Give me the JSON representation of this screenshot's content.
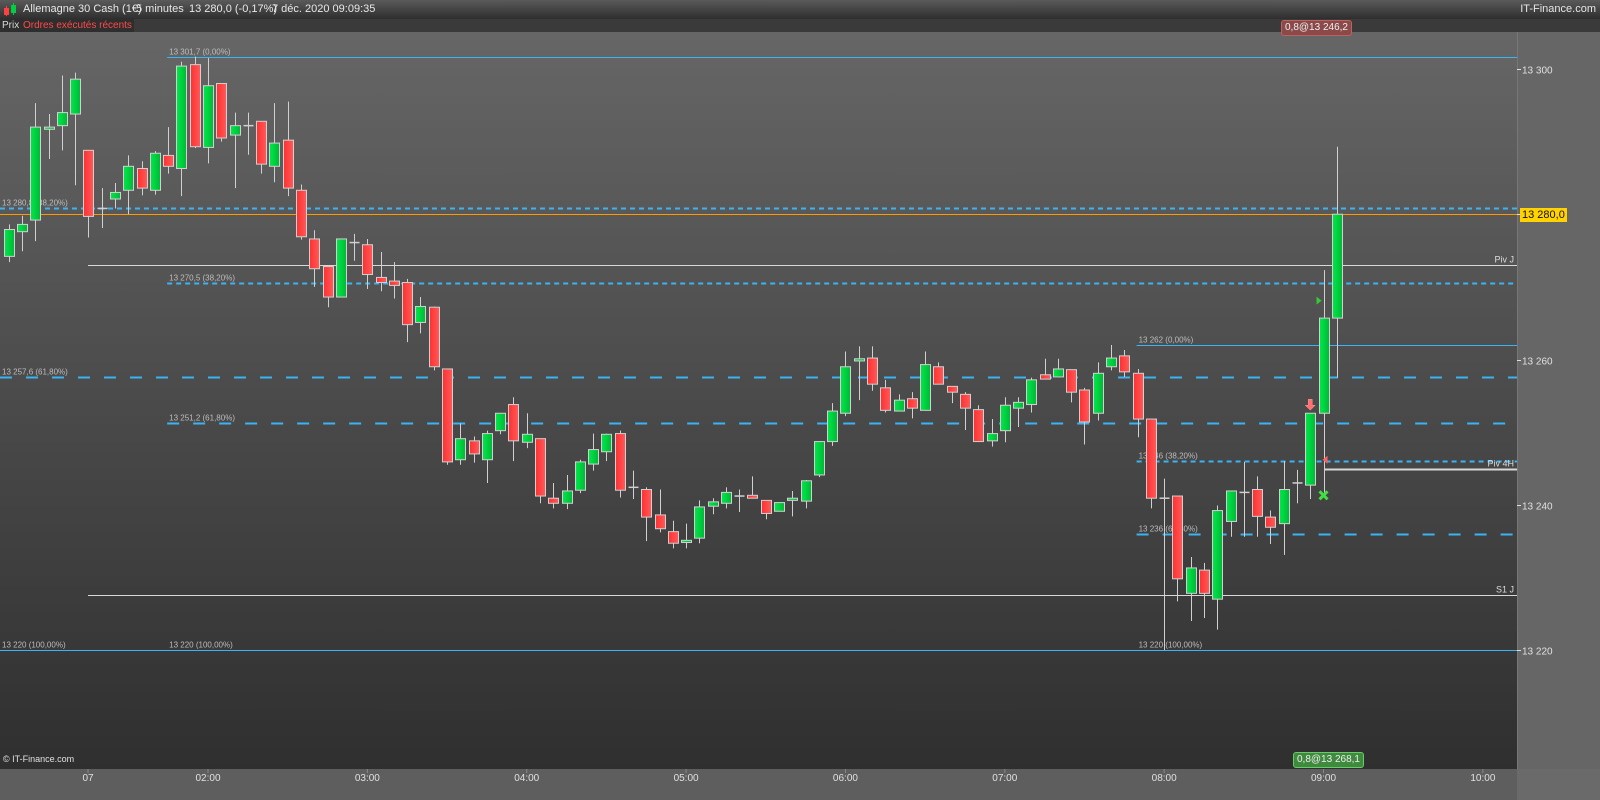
{
  "header": {
    "instrument": "Allemagne 30 Cash (1€)",
    "interval": "5 minutes",
    "last_price": "13 280,0 (-0,17%)",
    "datetime": "7 déc. 2020 09:09:35",
    "brand": "IT-Finance.com"
  },
  "tabs": [
    {
      "label": "Prix",
      "active": true
    },
    {
      "label": "Ordres exécutés récents",
      "active": false
    }
  ],
  "footer": {
    "copyright": "© IT-Finance.com"
  },
  "orders": {
    "sell_tag": "0,8@13 246,2",
    "buy_tag": "0,8@13 268,1"
  },
  "colors": {
    "up": "#00d040",
    "down": "#ff4040",
    "fib": "#3ab4f2",
    "last_price_line": "#ff9900",
    "last_price_tag": "#ffd200",
    "pivot": "#d8d8d8"
  },
  "chart_data": {
    "type": "candlestick",
    "ylim": [
      13203,
      13310
    ],
    "y_ticks": [
      {
        "value": 13300,
        "label": "13 300"
      },
      {
        "value": 13260,
        "label": "13 260"
      },
      {
        "value": 13240,
        "label": "13 240"
      },
      {
        "value": 13220,
        "label": "13 220"
      }
    ],
    "last_price": {
      "value": 13280.0,
      "label": "13 280,0"
    },
    "x_ticks": [
      "07",
      "02:00",
      "03:00",
      "04:00",
      "05:00",
      "06:00",
      "07:00",
      "08:00",
      "09:00",
      "10:00"
    ],
    "candles": [
      [
        "00:45",
        13274.2,
        13278.6,
        13273.4,
        13277.9
      ],
      [
        "00:50",
        13277.6,
        13279.8,
        13274.9,
        13278.6
      ],
      [
        "00:55",
        13279.2,
        13295.3,
        13276.3,
        13292.0
      ],
      [
        "01:00",
        13291.7,
        13293.8,
        13287.6,
        13292.0
      ],
      [
        "01:05",
        13292.2,
        13299.1,
        13288.8,
        13294.0
      ],
      [
        "01:10",
        13293.8,
        13299.5,
        13284.0,
        13298.6
      ],
      [
        "01:15",
        13288.8,
        13288.8,
        13276.8,
        13279.7
      ],
      [
        "01:20",
        13280.8,
        13283.6,
        13278.1,
        13280.8
      ],
      [
        "01:25",
        13282.1,
        13284.3,
        13280.8,
        13283.0
      ],
      [
        "01:30",
        13283.3,
        13288.1,
        13280.0,
        13286.6
      ],
      [
        "01:35",
        13286.3,
        13287.3,
        13282.6,
        13283.6
      ],
      [
        "01:40",
        13283.3,
        13288.7,
        13282.7,
        13288.4
      ],
      [
        "01:45",
        13288.1,
        13292.0,
        13285.6,
        13286.6
      ],
      [
        "01:50",
        13286.3,
        13301.0,
        13282.5,
        13300.4
      ],
      [
        "01:55",
        13300.6,
        13301.7,
        13289.1,
        13289.3
      ],
      [
        "02:00",
        13289.2,
        13301.5,
        13287.0,
        13297.7
      ],
      [
        "02:05",
        13298.0,
        13298.0,
        13290.0,
        13290.5
      ],
      [
        "02:10",
        13290.9,
        13294.0,
        13283.6,
        13292.2
      ],
      [
        "02:15",
        13292.2,
        13294.0,
        13288.2,
        13292.2
      ],
      [
        "02:20",
        13292.8,
        13292.8,
        13285.6,
        13286.9
      ],
      [
        "02:25",
        13286.6,
        13295.3,
        13284.4,
        13289.8
      ],
      [
        "02:30",
        13290.2,
        13295.5,
        13282.5,
        13283.6
      ],
      [
        "02:35",
        13283.3,
        13284.1,
        13276.5,
        13276.9
      ],
      [
        "02:40",
        13276.6,
        13277.8,
        13270.0,
        13272.5
      ],
      [
        "02:45",
        13272.8,
        13272.8,
        13267.2,
        13268.6
      ],
      [
        "02:50",
        13268.6,
        13276.6,
        13268.6,
        13276.6
      ],
      [
        "02:55",
        13276.1,
        13277.3,
        13273.6,
        13276.1
      ],
      [
        "03:00",
        13275.8,
        13276.6,
        13269.7,
        13271.7
      ],
      [
        "03:05",
        13271.3,
        13274.8,
        13269.4,
        13270.6
      ],
      [
        "03:10",
        13270.8,
        13273.4,
        13268.4,
        13270.2
      ],
      [
        "03:15",
        13270.6,
        13271.1,
        13262.4,
        13264.8
      ],
      [
        "03:20",
        13265.1,
        13268.6,
        13263.6,
        13267.3
      ],
      [
        "03:25",
        13267.2,
        13267.3,
        13258.5,
        13259.0
      ],
      [
        "03:30",
        13258.7,
        13258.7,
        13245.5,
        13245.9
      ],
      [
        "03:35",
        13246.2,
        13251.2,
        13245.5,
        13249.1
      ],
      [
        "03:40",
        13248.8,
        13249.4,
        13245.8,
        13247.0
      ],
      [
        "03:45",
        13246.2,
        13250.2,
        13243.0,
        13249.8
      ],
      [
        "03:50",
        13250.2,
        13252.6,
        13249.7,
        13252.6
      ],
      [
        "03:55",
        13253.8,
        13254.8,
        13246.0,
        13248.8
      ],
      [
        "04:00",
        13248.6,
        13252.6,
        13247.8,
        13249.7
      ],
      [
        "04:05",
        13249.1,
        13249.1,
        13240.2,
        13241.2
      ],
      [
        "04:10",
        13240.9,
        13243.0,
        13239.5,
        13240.2
      ],
      [
        "04:15",
        13240.2,
        13244.1,
        13239.4,
        13241.9
      ],
      [
        "04:20",
        13242.0,
        13246.2,
        13241.6,
        13245.9
      ],
      [
        "04:25",
        13245.6,
        13249.8,
        13244.7,
        13247.6
      ],
      [
        "04:30",
        13247.3,
        13249.8,
        13246.0,
        13249.7
      ],
      [
        "04:35",
        13249.8,
        13250.2,
        13241.0,
        13242.0
      ],
      [
        "04:40",
        13242.4,
        13244.7,
        13240.8,
        13242.4
      ],
      [
        "04:45",
        13242.1,
        13242.4,
        13235.0,
        13238.3
      ],
      [
        "04:50",
        13238.6,
        13242.1,
        13236.2,
        13236.7
      ],
      [
        "04:55",
        13236.3,
        13237.8,
        13234.0,
        13234.7
      ],
      [
        "05:00",
        13234.8,
        13237.4,
        13234.0,
        13235.1
      ],
      [
        "05:05",
        13235.4,
        13240.6,
        13234.7,
        13239.7
      ],
      [
        "05:10",
        13239.8,
        13240.9,
        13238.7,
        13240.4
      ],
      [
        "05:15",
        13240.2,
        13242.4,
        13239.5,
        13241.7
      ],
      [
        "05:20",
        13241.2,
        13242.1,
        13239.0,
        13241.2
      ],
      [
        "05:25",
        13241.3,
        13243.9,
        13240.9,
        13240.9
      ],
      [
        "05:30",
        13240.6,
        13240.6,
        13238.0,
        13238.8
      ],
      [
        "05:35",
        13239.1,
        13240.3,
        13239.1,
        13240.3
      ],
      [
        "05:40",
        13240.6,
        13241.9,
        13238.4,
        13240.9
      ],
      [
        "05:45",
        13240.5,
        13243.4,
        13239.5,
        13243.3
      ],
      [
        "05:50",
        13244.1,
        13248.7,
        13243.8,
        13248.7
      ],
      [
        "05:55",
        13248.7,
        13254.0,
        13248.1,
        13252.9
      ],
      [
        "06:00",
        13252.6,
        13261.1,
        13252.2,
        13259.0
      ],
      [
        "06:05",
        13259.8,
        13261.8,
        13254.4,
        13260.1
      ],
      [
        "06:10",
        13260.2,
        13261.8,
        13255.7,
        13256.6
      ],
      [
        "06:15",
        13256.1,
        13257.2,
        13252.7,
        13253.0
      ],
      [
        "06:20",
        13252.9,
        13255.2,
        13252.9,
        13254.4
      ],
      [
        "06:25",
        13254.6,
        13255.5,
        13251.9,
        13253.3
      ],
      [
        "06:30",
        13253.0,
        13261.1,
        13253.0,
        13259.3
      ],
      [
        "06:35",
        13259.0,
        13259.6,
        13256.6,
        13256.6
      ],
      [
        "06:40",
        13256.3,
        13256.3,
        13254.0,
        13255.5
      ],
      [
        "06:45",
        13255.2,
        13255.5,
        13250.3,
        13253.3
      ],
      [
        "06:50",
        13253.1,
        13253.7,
        13248.7,
        13248.7
      ],
      [
        "06:55",
        13248.8,
        13251.8,
        13248.0,
        13249.8
      ],
      [
        "07:00",
        13250.2,
        13254.8,
        13248.6,
        13253.7
      ],
      [
        "07:05",
        13253.3,
        13254.8,
        13250.7,
        13254.1
      ],
      [
        "07:10",
        13253.8,
        13257.5,
        13252.7,
        13257.2
      ],
      [
        "07:15",
        13257.9,
        13260.1,
        13257.3,
        13257.3
      ],
      [
        "07:20",
        13257.6,
        13260.1,
        13257.6,
        13258.7
      ],
      [
        "07:25",
        13258.6,
        13258.6,
        13254.1,
        13255.5
      ],
      [
        "07:30",
        13255.8,
        13256.1,
        13248.3,
        13251.4
      ],
      [
        "07:35",
        13252.6,
        13259.6,
        13251.6,
        13258.1
      ],
      [
        "07:40",
        13259.0,
        13262.0,
        13258.5,
        13260.2
      ],
      [
        "07:45",
        13260.5,
        13261.3,
        13257.6,
        13258.3
      ],
      [
        "07:50",
        13258.1,
        13258.7,
        13249.3,
        13251.8
      ],
      [
        "07:55",
        13251.8,
        13251.8,
        13239.5,
        13240.9
      ],
      [
        "08:00",
        13240.9,
        13243.6,
        13220.0,
        13240.9
      ],
      [
        "08:05",
        13241.2,
        13241.2,
        13226.7,
        13229.8
      ],
      [
        "08:10",
        13227.8,
        13232.8,
        13224.0,
        13231.3
      ],
      [
        "08:15",
        13231.0,
        13232.0,
        13224.4,
        13227.8
      ],
      [
        "08:20",
        13227.0,
        13239.9,
        13222.8,
        13239.2
      ],
      [
        "08:25",
        13237.7,
        13241.9,
        13235.6,
        13241.9
      ],
      [
        "08:30",
        13241.7,
        13245.9,
        13235.6,
        13241.7
      ],
      [
        "08:35",
        13242.1,
        13243.9,
        13235.6,
        13238.4
      ],
      [
        "08:40",
        13238.3,
        13239.2,
        13234.6,
        13236.9
      ],
      [
        "08:45",
        13237.4,
        13246.0,
        13233.1,
        13242.1
      ],
      [
        "08:50",
        13243.0,
        13244.8,
        13240.2,
        13243.0
      ],
      [
        "08:55",
        13242.7,
        13252.6,
        13240.8,
        13252.6
      ],
      [
        "09:00",
        13252.6,
        13272.3,
        13241.3,
        13265.7
      ],
      [
        "09:05",
        13265.7,
        13289.3,
        13257.5,
        13280.0
      ]
    ],
    "fibonacci": [
      {
        "from": null,
        "levels": [
          {
            "value": 13280.8,
            "label": "13 280,8 (38,20%)",
            "style": "short-dash"
          },
          {
            "value": 13257.6,
            "label": "13 257,6 (61,80%)",
            "style": "long-dash"
          },
          {
            "value": 13220,
            "label": "13 220 (100,00%)",
            "style": "solid"
          }
        ]
      },
      {
        "from": "01:45",
        "levels": [
          {
            "value": 13301.7,
            "label": "13 301,7 (0,00%)",
            "style": "solid"
          },
          {
            "value": 13270.5,
            "label": "13 270,5 (38,20%)",
            "style": "short-dash"
          },
          {
            "value": 13251.2,
            "label": "13 251,2 (61,80%)",
            "style": "long-dash"
          },
          {
            "value": 13220,
            "label": "13 220 (100,00%)",
            "style": "solid"
          }
        ]
      },
      {
        "from": "07:50",
        "levels": [
          {
            "value": 13262,
            "label": "13 262 (0,00%)",
            "style": "solid"
          },
          {
            "value": 13246,
            "label": "13 246 (38,20%)",
            "style": "short-dash"
          },
          {
            "value": 13236,
            "label": "13 236 (61,80%)",
            "style": "long-dash"
          },
          {
            "value": 13220,
            "label": "13 220 (100,00%)",
            "style": "solid"
          }
        ]
      }
    ],
    "pivots": [
      {
        "name": "Piv J",
        "value": 13273.0
      },
      {
        "name": "Piv 4H",
        "value": 13244.9
      },
      {
        "name": "S1 J",
        "value": 13227.6
      }
    ],
    "markers": [
      {
        "type": "sell-arrow",
        "time": "08:55",
        "icon": "arrow-down-icon"
      },
      {
        "type": "buy-fill",
        "time": "09:00",
        "value": 13268.1,
        "icon": "triangle-right-icon"
      },
      {
        "type": "sell-fill",
        "time": "09:00",
        "value": 13246.2,
        "icon": "triangle-left-icon"
      },
      {
        "type": "close",
        "time": "09:00",
        "icon": "cross-icon"
      }
    ]
  }
}
